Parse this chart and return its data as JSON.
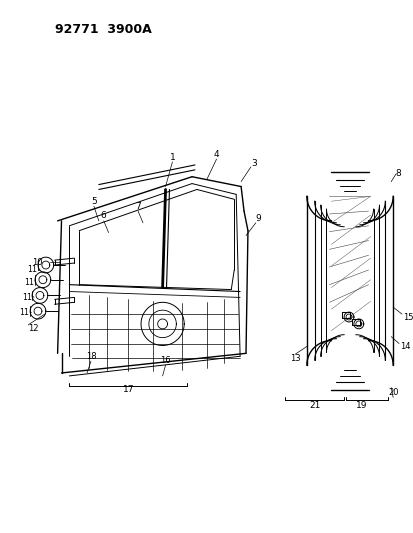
{
  "title": "92771  3900A",
  "bg_color": "#ffffff",
  "line_color": "#000000",
  "fig_width": 4.14,
  "fig_height": 5.33,
  "dpi": 100
}
